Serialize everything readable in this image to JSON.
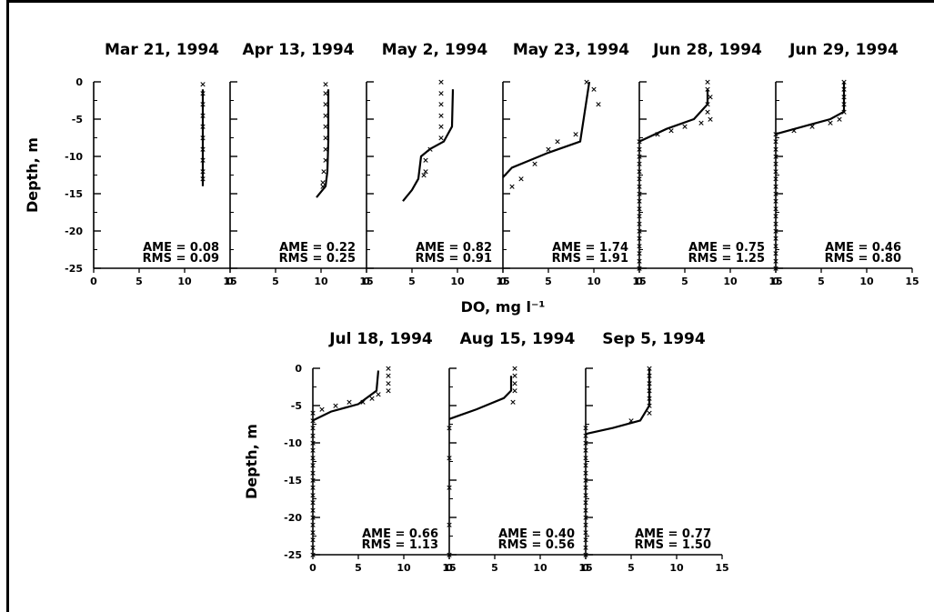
{
  "figure": {
    "xlabel": "DO, mg l⁻¹",
    "ylabel": "Depth, m",
    "x_ticks": [
      "0",
      "5",
      "10",
      "15"
    ],
    "y_ticks": [
      "0",
      "-5",
      "-10",
      "-15",
      "-20",
      "-25"
    ],
    "ame_label": "AME",
    "rms_label": "RMS"
  },
  "chart_data": [
    {
      "type": "line",
      "title": "Mar 21, 1994",
      "xlim": [
        0,
        15
      ],
      "ylim": [
        -25,
        0
      ],
      "series": [
        {
          "values": [
            [
              12,
              -1
            ],
            [
              12,
              -5
            ],
            [
              12,
              -10
            ],
            [
              12,
              -14
            ]
          ]
        }
      ],
      "observed": [
        [
          12,
          -0.3
        ],
        [
          12,
          -1.5
        ],
        [
          12,
          -3
        ],
        [
          12,
          -4.5
        ],
        [
          12,
          -6
        ],
        [
          12,
          -7.5
        ],
        [
          12,
          -9
        ],
        [
          12,
          -10.5
        ],
        [
          12,
          -12
        ],
        [
          12,
          -13
        ]
      ],
      "AME": "0.08",
      "RMS": "0.09"
    },
    {
      "type": "line",
      "title": "Apr 13, 1994",
      "xlim": [
        0,
        15
      ],
      "ylim": [
        -25,
        0
      ],
      "series": [
        {
          "values": [
            [
              10.8,
              -1
            ],
            [
              10.8,
              -8
            ],
            [
              10.7,
              -12
            ],
            [
              10.5,
              -14
            ],
            [
              9.5,
              -15.5
            ]
          ]
        }
      ],
      "observed": [
        [
          10.5,
          -0.3
        ],
        [
          10.5,
          -1.5
        ],
        [
          10.5,
          -3
        ],
        [
          10.5,
          -4.5
        ],
        [
          10.5,
          -6
        ],
        [
          10.5,
          -7.5
        ],
        [
          10.5,
          -9
        ],
        [
          10.5,
          -10.5
        ],
        [
          10.3,
          -12
        ],
        [
          10.2,
          -13.5
        ],
        [
          10.2,
          -14
        ]
      ],
      "AME": "0.22",
      "RMS": "0.25"
    },
    {
      "type": "line",
      "title": "May  2, 1994",
      "xlim": [
        0,
        15
      ],
      "ylim": [
        -25,
        0
      ],
      "series": [
        {
          "values": [
            [
              9.5,
              -1
            ],
            [
              9.4,
              -6
            ],
            [
              8.5,
              -8
            ],
            [
              7,
              -9
            ],
            [
              6,
              -10
            ],
            [
              5.8,
              -12
            ],
            [
              5.7,
              -13
            ],
            [
              5,
              -14.5
            ],
            [
              4,
              -16
            ]
          ]
        }
      ],
      "observed": [
        [
          8.2,
          0
        ],
        [
          8.2,
          -1.5
        ],
        [
          8.2,
          -3
        ],
        [
          8.2,
          -4.5
        ],
        [
          8.2,
          -6
        ],
        [
          8.2,
          -7.5
        ],
        [
          7,
          -9
        ],
        [
          6.5,
          -10.5
        ],
        [
          6.5,
          -12
        ],
        [
          6.3,
          -12.5
        ]
      ],
      "AME": "0.82",
      "RMS": "0.91"
    },
    {
      "type": "line",
      "title": "May 23, 1994",
      "xlim": [
        0,
        15
      ],
      "ylim": [
        -25,
        0
      ],
      "series": [
        {
          "values": [
            [
              9.5,
              0
            ],
            [
              8.5,
              -8
            ],
            [
              5,
              -9.5
            ],
            [
              3,
              -10.5
            ],
            [
              1,
              -11.5
            ],
            [
              0,
              -12.8
            ]
          ]
        }
      ],
      "observed": [
        [
          9.2,
          0
        ],
        [
          10,
          -1
        ],
        [
          10.5,
          -3
        ],
        [
          8,
          -7
        ],
        [
          6,
          -8
        ],
        [
          5,
          -9
        ],
        [
          3.5,
          -11
        ],
        [
          2,
          -13
        ],
        [
          1,
          -14
        ]
      ],
      "AME": "1.74",
      "RMS": "1.91"
    },
    {
      "type": "line",
      "title": "Jun 28, 1994",
      "xlim": [
        0,
        15
      ],
      "ylim": [
        -25,
        0
      ],
      "series": [
        {
          "values": [
            [
              7.5,
              -1
            ],
            [
              7.5,
              -3
            ],
            [
              6,
              -5
            ],
            [
              3,
              -6.3
            ],
            [
              0,
              -8
            ]
          ]
        }
      ],
      "observed": [
        [
          7.5,
          0
        ],
        [
          7.5,
          -1
        ],
        [
          7.8,
          -2
        ],
        [
          7.5,
          -3
        ],
        [
          7.5,
          -4
        ],
        [
          7.8,
          -5
        ],
        [
          6.8,
          -5.5
        ],
        [
          5,
          -6
        ],
        [
          3.5,
          -6.5
        ],
        [
          2,
          -7
        ],
        [
          0,
          -8
        ],
        [
          0,
          -9
        ],
        [
          0,
          -10
        ],
        [
          0,
          -11
        ],
        [
          0,
          -12
        ],
        [
          0,
          -13
        ],
        [
          0,
          -14
        ],
        [
          0,
          -15
        ],
        [
          0,
          -16
        ],
        [
          0,
          -17
        ],
        [
          0,
          -18
        ],
        [
          0,
          -19
        ],
        [
          0,
          -20
        ],
        [
          0,
          -21
        ],
        [
          0,
          -22
        ],
        [
          0,
          -23
        ],
        [
          0,
          -24
        ],
        [
          0,
          -25
        ]
      ],
      "AME": "0.75",
      "RMS": "1.25"
    },
    {
      "type": "line",
      "title": "Jun 29, 1994",
      "xlim": [
        0,
        15
      ],
      "ylim": [
        -25,
        0
      ],
      "series": [
        {
          "values": [
            [
              7.5,
              0
            ],
            [
              7.5,
              -4
            ],
            [
              6,
              -5
            ],
            [
              3,
              -6
            ],
            [
              0,
              -7
            ]
          ]
        }
      ],
      "observed": [
        [
          7.5,
          0
        ],
        [
          7.5,
          -1
        ],
        [
          7.5,
          -2
        ],
        [
          7.5,
          -3
        ],
        [
          7.5,
          -4
        ],
        [
          7,
          -5
        ],
        [
          6,
          -5.5
        ],
        [
          4,
          -6
        ],
        [
          2,
          -6.5
        ],
        [
          0,
          -7
        ],
        [
          0,
          -8
        ],
        [
          0,
          -9
        ],
        [
          0,
          -10
        ],
        [
          0,
          -11
        ],
        [
          0,
          -12
        ],
        [
          0,
          -13
        ],
        [
          0,
          -14
        ],
        [
          0,
          -15
        ],
        [
          0,
          -16
        ],
        [
          0,
          -17
        ],
        [
          0,
          -18
        ],
        [
          0,
          -19
        ],
        [
          0,
          -20
        ],
        [
          0,
          -21
        ],
        [
          0,
          -22
        ],
        [
          0,
          -23
        ],
        [
          0,
          -24
        ],
        [
          0,
          -25
        ]
      ],
      "AME": "0.46",
      "RMS": "0.80"
    },
    {
      "type": "line",
      "title": "Jul 18, 1994",
      "xlim": [
        0,
        15
      ],
      "ylim": [
        -25,
        0
      ],
      "series": [
        {
          "values": [
            [
              7.2,
              -0.3
            ],
            [
              7,
              -3
            ],
            [
              5,
              -4.8
            ],
            [
              2,
              -5.8
            ],
            [
              0,
              -7
            ]
          ]
        }
      ],
      "observed": [
        [
          8.3,
          0
        ],
        [
          8.3,
          -1
        ],
        [
          8.3,
          -2
        ],
        [
          8.3,
          -3
        ],
        [
          7.2,
          -3.5
        ],
        [
          6.5,
          -4
        ],
        [
          5.5,
          -4.5
        ],
        [
          4,
          -4.5
        ],
        [
          2.5,
          -5
        ],
        [
          1,
          -5.5
        ],
        [
          0,
          -6
        ],
        [
          0,
          -7
        ],
        [
          0,
          -8
        ],
        [
          0,
          -9
        ],
        [
          0,
          -10
        ],
        [
          0,
          -11
        ],
        [
          0,
          -12
        ],
        [
          0,
          -13
        ],
        [
          0,
          -14
        ],
        [
          0,
          -15
        ],
        [
          0,
          -16
        ],
        [
          0,
          -17
        ],
        [
          0,
          -18
        ],
        [
          0,
          -19
        ],
        [
          0,
          -20
        ],
        [
          0,
          -21
        ],
        [
          0,
          -22
        ],
        [
          0,
          -23
        ],
        [
          0,
          -24
        ],
        [
          0,
          -25
        ]
      ],
      "AME": "0.66",
      "RMS": "1.13"
    },
    {
      "type": "line",
      "title": "Aug 15, 1994",
      "xlim": [
        0,
        15
      ],
      "ylim": [
        -25,
        0
      ],
      "series": [
        {
          "values": [
            [
              6.8,
              -1
            ],
            [
              6.8,
              -3
            ],
            [
              6,
              -4
            ],
            [
              3,
              -5.5
            ],
            [
              0,
              -6.8
            ]
          ]
        }
      ],
      "observed": [
        [
          7.2,
          0
        ],
        [
          7.2,
          -1
        ],
        [
          7.2,
          -2
        ],
        [
          7.2,
          -3
        ],
        [
          7,
          -4.5
        ],
        [
          0,
          -8
        ],
        [
          0,
          -12
        ],
        [
          0,
          -16
        ],
        [
          0,
          -21
        ],
        [
          0,
          -25
        ]
      ],
      "AME": "0.40",
      "RMS": "0.56"
    },
    {
      "type": "line",
      "title": "Sep  5, 1994",
      "xlim": [
        0,
        15
      ],
      "ylim": [
        -25,
        0
      ],
      "series": [
        {
          "values": [
            [
              7,
              0
            ],
            [
              7,
              -5
            ],
            [
              6,
              -7
            ],
            [
              3,
              -8
            ],
            [
              0,
              -8.8
            ]
          ]
        }
      ],
      "observed": [
        [
          7,
          0
        ],
        [
          7,
          -1
        ],
        [
          7,
          -2
        ],
        [
          7,
          -3
        ],
        [
          7,
          -4
        ],
        [
          7,
          -5
        ],
        [
          7,
          -6
        ],
        [
          5,
          -7
        ],
        [
          0,
          -8
        ],
        [
          0,
          -9
        ],
        [
          0,
          -10
        ],
        [
          0,
          -11
        ],
        [
          0,
          -12
        ],
        [
          0,
          -13
        ],
        [
          0,
          -14
        ],
        [
          0,
          -15
        ],
        [
          0,
          -16
        ],
        [
          0,
          -17
        ],
        [
          0,
          -18
        ],
        [
          0,
          -19
        ],
        [
          0,
          -20
        ],
        [
          0,
          -21
        ],
        [
          0,
          -22
        ],
        [
          0,
          -23
        ],
        [
          0,
          -24
        ],
        [
          0,
          -25
        ]
      ],
      "AME": "0.77",
      "RMS": "1.50"
    }
  ]
}
